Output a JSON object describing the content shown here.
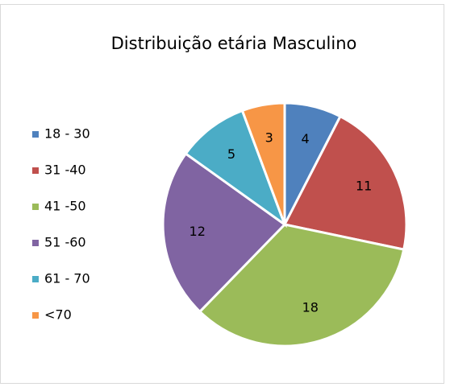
{
  "chart_data": {
    "type": "pie",
    "title": "Distribuição etária Masculino",
    "categories": [
      "18 - 30",
      "31 -40",
      "41 -50",
      "51 -60",
      "61 - 70",
      "<70"
    ],
    "values": [
      4,
      11,
      18,
      12,
      5,
      3
    ],
    "colors": [
      "#4f81bd",
      "#c0504d",
      "#9bbb59",
      "#8064a2",
      "#4bacc6",
      "#f79646"
    ],
    "legend": "left"
  }
}
